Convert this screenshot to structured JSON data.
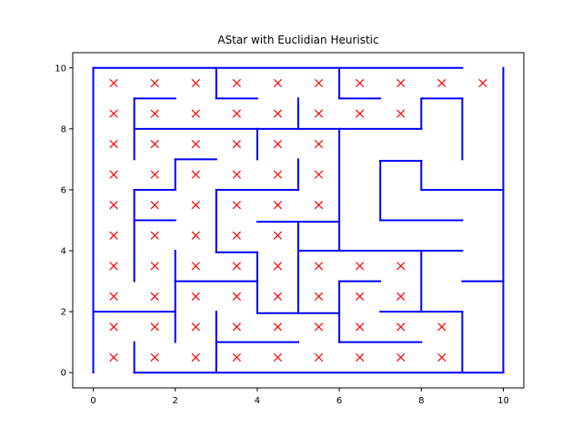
{
  "chart_data": {
    "type": "line",
    "title": "AStar with Euclidian Heuristic",
    "xlabel": "",
    "ylabel": "",
    "xlim": [
      -0.5,
      10.5
    ],
    "ylim": [
      -0.5,
      10.5
    ],
    "x_ticks": [
      "0",
      "2",
      "4",
      "6",
      "8",
      "10"
    ],
    "y_ticks": [
      "0",
      "2",
      "4",
      "6",
      "8",
      "10"
    ],
    "grid": false,
    "wall_color": "#0000ff",
    "marker_color": "#ff0000",
    "series": [
      {
        "type": "segments",
        "segments": [
          [
            [
              0,
              10
            ],
            [
              9,
              10
            ]
          ],
          [
            [
              10,
              0
            ],
            [
              10,
              10
            ]
          ],
          [
            [
              0,
              0
            ],
            [
              0,
              10
            ]
          ],
          [
            [
              1,
              0
            ],
            [
              10,
              0
            ]
          ],
          [
            [
              3,
              9
            ],
            [
              3,
              10
            ]
          ],
          [
            [
              3,
              9
            ],
            [
              4,
              9
            ]
          ],
          [
            [
              6,
              9
            ],
            [
              6,
              10
            ]
          ],
          [
            [
              6,
              9
            ],
            [
              7,
              9
            ]
          ],
          [
            [
              1,
              7
            ],
            [
              1,
              9
            ]
          ],
          [
            [
              1,
              9
            ],
            [
              2,
              9
            ]
          ],
          [
            [
              1,
              8
            ],
            [
              8,
              8
            ]
          ],
          [
            [
              5,
              8
            ],
            [
              5,
              9
            ]
          ],
          [
            [
              8,
              8
            ],
            [
              8,
              9
            ]
          ],
          [
            [
              8,
              9
            ],
            [
              9,
              9
            ]
          ],
          [
            [
              9,
              7
            ],
            [
              9,
              9
            ]
          ],
          [
            [
              4,
              7
            ],
            [
              4,
              8
            ]
          ],
          [
            [
              6,
              4
            ],
            [
              6,
              8
            ]
          ],
          [
            [
              2,
              6
            ],
            [
              2,
              7
            ]
          ],
          [
            [
              2,
              7
            ],
            [
              3,
              7
            ]
          ],
          [
            [
              1,
              6
            ],
            [
              2,
              6
            ]
          ],
          [
            [
              1,
              3
            ],
            [
              1,
              6
            ]
          ],
          [
            [
              1,
              5
            ],
            [
              2,
              5
            ]
          ],
          [
            [
              3,
              6
            ],
            [
              5,
              6
            ]
          ],
          [
            [
              5,
              6
            ],
            [
              5,
              7
            ]
          ],
          [
            [
              3,
              3.95
            ],
            [
              3,
              6
            ]
          ],
          [
            [
              4,
              4.95
            ],
            [
              6,
              4.95
            ]
          ],
          [
            [
              3,
              3.95
            ],
            [
              4,
              3.95
            ]
          ],
          [
            [
              7,
              6.95
            ],
            [
              8,
              6.95
            ]
          ],
          [
            [
              7,
              5
            ],
            [
              7,
              6.95
            ]
          ],
          [
            [
              8,
              6
            ],
            [
              8,
              6.95
            ]
          ],
          [
            [
              8,
              6
            ],
            [
              10,
              6
            ]
          ],
          [
            [
              7,
              5
            ],
            [
              9,
              5
            ]
          ],
          [
            [
              5,
              2
            ],
            [
              5,
              4.95
            ]
          ],
          [
            [
              5,
              4
            ],
            [
              9,
              4
            ]
          ],
          [
            [
              4,
              1.95
            ],
            [
              4,
              3.95
            ]
          ],
          [
            [
              2,
              1
            ],
            [
              2,
              4
            ]
          ],
          [
            [
              2,
              3
            ],
            [
              4,
              3
            ]
          ],
          [
            [
              0,
              2
            ],
            [
              2,
              2
            ]
          ],
          [
            [
              4,
              1.95
            ],
            [
              6,
              1.95
            ]
          ],
          [
            [
              6,
              1
            ],
            [
              6,
              3
            ]
          ],
          [
            [
              6,
              3
            ],
            [
              7,
              3
            ]
          ],
          [
            [
              8,
              2
            ],
            [
              8,
              4
            ]
          ],
          [
            [
              7,
              2
            ],
            [
              9,
              2
            ]
          ],
          [
            [
              9,
              0
            ],
            [
              9,
              2
            ]
          ],
          [
            [
              9,
              3
            ],
            [
              10,
              3
            ]
          ],
          [
            [
              6,
              1
            ],
            [
              8,
              1
            ]
          ],
          [
            [
              3,
              1
            ],
            [
              5,
              1
            ]
          ],
          [
            [
              3,
              0
            ],
            [
              3,
              2
            ]
          ],
          [
            [
              1,
              0
            ],
            [
              1,
              1
            ]
          ]
        ]
      },
      {
        "type": "scatter",
        "marker": "x",
        "points": [
          [
            0.5,
            9.5
          ],
          [
            1.5,
            9.5
          ],
          [
            2.5,
            9.5
          ],
          [
            3.5,
            9.5
          ],
          [
            4.5,
            9.5
          ],
          [
            5.5,
            9.5
          ],
          [
            6.5,
            9.5
          ],
          [
            7.5,
            9.5
          ],
          [
            8.5,
            9.5
          ],
          [
            9.5,
            9.5
          ],
          [
            0.5,
            8.5
          ],
          [
            1.5,
            8.5
          ],
          [
            2.5,
            8.5
          ],
          [
            3.5,
            8.5
          ],
          [
            4.5,
            8.5
          ],
          [
            5.5,
            8.5
          ],
          [
            6.5,
            8.5
          ],
          [
            7.5,
            8.5
          ],
          [
            0.5,
            7.5
          ],
          [
            1.5,
            7.5
          ],
          [
            2.5,
            7.5
          ],
          [
            3.5,
            7.5
          ],
          [
            4.5,
            7.5
          ],
          [
            5.5,
            7.5
          ],
          [
            0.5,
            6.5
          ],
          [
            1.5,
            6.5
          ],
          [
            2.5,
            6.5
          ],
          [
            3.5,
            6.5
          ],
          [
            4.5,
            6.5
          ],
          [
            5.5,
            6.5
          ],
          [
            0.5,
            5.5
          ],
          [
            1.5,
            5.5
          ],
          [
            2.5,
            5.5
          ],
          [
            3.5,
            5.5
          ],
          [
            4.5,
            5.5
          ],
          [
            5.5,
            5.5
          ],
          [
            0.5,
            4.5
          ],
          [
            1.5,
            4.5
          ],
          [
            2.5,
            4.5
          ],
          [
            3.5,
            4.5
          ],
          [
            4.5,
            4.5
          ],
          [
            0.5,
            3.5
          ],
          [
            1.5,
            3.5
          ],
          [
            2.5,
            3.5
          ],
          [
            3.5,
            3.5
          ],
          [
            4.5,
            3.5
          ],
          [
            5.5,
            3.5
          ],
          [
            6.5,
            3.5
          ],
          [
            7.5,
            3.5
          ],
          [
            0.5,
            2.5
          ],
          [
            1.5,
            2.5
          ],
          [
            2.5,
            2.5
          ],
          [
            3.5,
            2.5
          ],
          [
            4.5,
            2.5
          ],
          [
            5.5,
            2.5
          ],
          [
            6.5,
            2.5
          ],
          [
            7.5,
            2.5
          ],
          [
            0.5,
            1.5
          ],
          [
            1.5,
            1.5
          ],
          [
            2.5,
            1.5
          ],
          [
            3.5,
            1.5
          ],
          [
            4.5,
            1.5
          ],
          [
            5.5,
            1.5
          ],
          [
            6.5,
            1.5
          ],
          [
            7.5,
            1.5
          ],
          [
            8.5,
            1.5
          ],
          [
            0.5,
            0.5
          ],
          [
            1.5,
            0.5
          ],
          [
            2.5,
            0.5
          ],
          [
            3.5,
            0.5
          ],
          [
            4.5,
            0.5
          ],
          [
            5.5,
            0.5
          ],
          [
            6.5,
            0.5
          ],
          [
            7.5,
            0.5
          ],
          [
            8.5,
            0.5
          ]
        ]
      }
    ]
  }
}
